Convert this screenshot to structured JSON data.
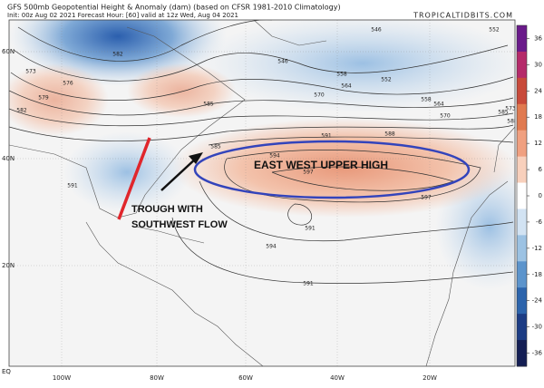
{
  "header": {
    "title": "GFS 500mb Geopotential Height & Anomaly (dam) (based on CFSR 1981-2010 Climatology)",
    "subtitle": "Init: 00z Aug 02 2021   Forecast Hour: [60]   valid at 12z Wed, Aug 04 2021",
    "credit": "TROPICALTIDBITS.COM"
  },
  "map": {
    "lat_labels": [
      "60N",
      "40N",
      "20N",
      "EQ"
    ],
    "lon_labels": [
      "100W",
      "80W",
      "60W",
      "40W",
      "20W"
    ],
    "contour_labels": [
      546,
      546,
      552,
      552,
      558,
      558,
      564,
      564,
      570,
      570,
      573,
      573,
      576,
      579,
      582,
      582,
      585,
      585,
      585,
      588,
      588,
      591,
      591,
      594,
      594,
      597,
      597,
      591,
      591
    ]
  },
  "colorbar": {
    "ticks": [
      36,
      30,
      24,
      18,
      12,
      6,
      0,
      -6,
      -12,
      -18,
      -24,
      -30,
      -36
    ]
  },
  "annotations": {
    "high": "EAST WEST UPPER HIGH",
    "trough_line1": "TROUGH WITH",
    "trough_line2": "SOUTHWEST FLOW"
  }
}
